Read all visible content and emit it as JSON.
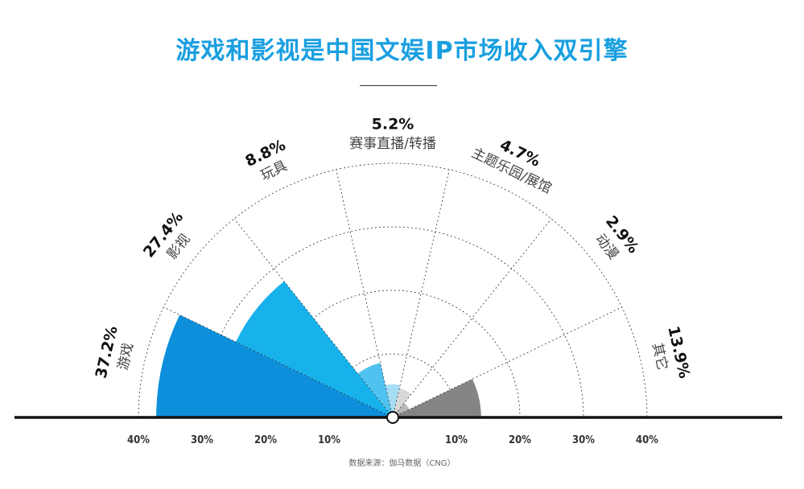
{
  "header": {
    "title": "游戏和影视是中国文娱IP市场收入双引擎"
  },
  "footer": {
    "source": "数据来源：伽马数据（CNG）"
  },
  "chart_data": {
    "type": "polar-area",
    "title": "游戏和影视是中国文娱IP市场收入双引擎",
    "rmax": 40,
    "axis_ticks_left": [
      "40%",
      "30%",
      "20%",
      "10%"
    ],
    "axis_ticks_right": [
      "10%",
      "20%",
      "30%",
      "40%"
    ],
    "ring_values": [
      10,
      20,
      30,
      40
    ],
    "unit": "%",
    "categories": [
      "游戏",
      "影视",
      "玩具",
      "赛事直播/转播",
      "主题乐园/展馆",
      "动漫",
      "其它"
    ],
    "values": [
      37.2,
      27.4,
      8.8,
      5.2,
      4.7,
      2.9,
      13.9
    ],
    "value_labels": [
      "37.2%",
      "27.4%",
      "8.8%",
      "5.2%",
      "4.7%",
      "2.9%",
      "13.9%"
    ],
    "colors": [
      "#0d8fdc",
      "#17b2ec",
      "#4fc2ef",
      "#a7dcf5",
      "#d8d8d8",
      "#b8b8b8",
      "#858585"
    ]
  }
}
